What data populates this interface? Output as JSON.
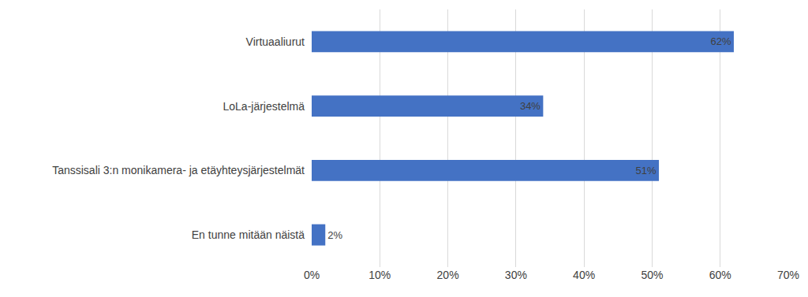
{
  "chart_data": {
    "type": "bar",
    "orientation": "horizontal",
    "categories": [
      "Virtuaaliurut",
      "LoLa-järjestelmä",
      "Tanssisali 3:n monikamera- ja etäyhteysjärjestelmät",
      "En tunne mitään näistä"
    ],
    "values": [
      62,
      34,
      51,
      2
    ],
    "value_labels": [
      "62%",
      "34%",
      "51%",
      "2%"
    ],
    "data_labels": true,
    "color": "#4472c4",
    "xlim": [
      0,
      70
    ],
    "xticks": [
      {
        "value": 0,
        "label": "0%"
      },
      {
        "value": 10,
        "label": "10%"
      },
      {
        "value": 20,
        "label": "20%"
      },
      {
        "value": 30,
        "label": "30%"
      },
      {
        "value": 40,
        "label": "40%"
      },
      {
        "value": 50,
        "label": "50%"
      },
      {
        "value": 60,
        "label": "60%"
      },
      {
        "value": 70,
        "label": "70%"
      }
    ],
    "grid": true
  }
}
